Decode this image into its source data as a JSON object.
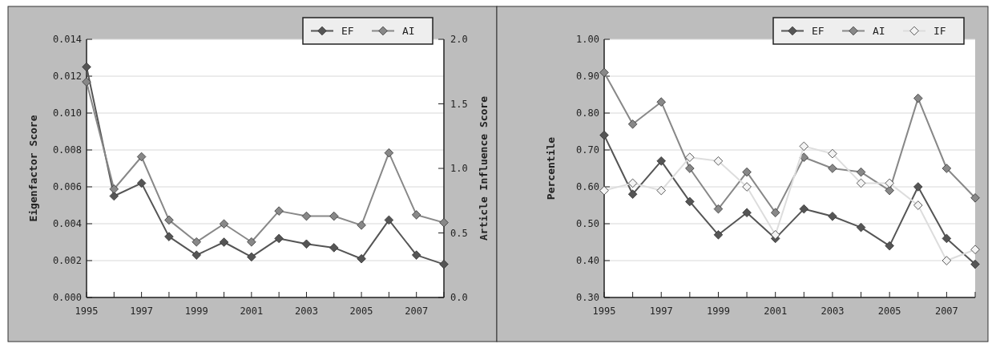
{
  "chart_data": [
    {
      "type": "line",
      "xlabel": null,
      "ylabel": "Eigenfactor Score",
      "y2label": "Article Influence Score",
      "x": [
        1995,
        1996,
        1997,
        1998,
        1999,
        2000,
        2001,
        2002,
        2003,
        2004,
        2005,
        2006,
        2007,
        2008
      ],
      "xlim": [
        1995,
        2008
      ],
      "xticks": [
        1995,
        {
          "value": 1996,
          "label": null
        },
        1997,
        {
          "value": 1998,
          "label": null
        },
        1999,
        {
          "value": 2000,
          "label": null
        },
        2001,
        {
          "value": 2002,
          "label": null
        },
        2003,
        {
          "value": 2004,
          "label": null
        },
        2005,
        {
          "value": 2006,
          "label": null
        },
        2007,
        {
          "value": 2008,
          "label": null
        }
      ],
      "ylim": [
        0,
        0.014
      ],
      "yticks": [
        {
          "value": 0,
          "label": "0.000"
        },
        {
          "value": 0.002,
          "label": "0.002"
        },
        {
          "value": 0.004,
          "label": "0.004"
        },
        {
          "value": 0.006,
          "label": "0.006"
        },
        {
          "value": 0.008,
          "label": "0.008"
        },
        {
          "value": 0.01,
          "label": "0.010"
        },
        {
          "value": 0.012,
          "label": "0.012"
        },
        {
          "value": 0.014,
          "label": "0.014"
        }
      ],
      "y2lim": [
        0,
        2
      ],
      "y2ticks": [
        {
          "value": 0,
          "label": "0.0"
        },
        {
          "value": 0.5,
          "label": "0.5"
        },
        {
          "value": 1,
          "label": "1.0"
        },
        {
          "value": 1.5,
          "label": "1.5"
        },
        {
          "value": 2,
          "label": "2.0"
        }
      ],
      "grid": "y",
      "legend": "top right",
      "marker": "diamond",
      "line_style": "solid",
      "series": [
        {
          "name": "EF",
          "color": "#555555",
          "values": [
            0.0125,
            0.0055,
            0.0062,
            0.0033,
            0.0023,
            0.003,
            0.0022,
            0.0032,
            0.0029,
            0.0027,
            0.0021,
            0.0042,
            0.0023,
            0.0018
          ]
        },
        {
          "name": "AI",
          "color": "#888888",
          "axis": "y2",
          "values": [
            1.67,
            0.84,
            1.09,
            0.6,
            0.43,
            0.57,
            0.43,
            0.67,
            0.63,
            0.63,
            0.56,
            1.12,
            0.64,
            0.58
          ]
        }
      ]
    },
    {
      "type": "line",
      "ylabel": "Percentile",
      "x": [
        1995,
        1996,
        1997,
        1998,
        1999,
        2000,
        2001,
        2002,
        2003,
        2004,
        2005,
        2006,
        2007,
        2008
      ],
      "xlim": [
        1995,
        2008
      ],
      "xticks": [
        1995,
        {
          "value": 1996,
          "label": null
        },
        1997,
        {
          "value": 1998,
          "label": null
        },
        1999,
        {
          "value": 2000,
          "label": null
        },
        2001,
        {
          "value": 2002,
          "label": null
        },
        2003,
        {
          "value": 2004,
          "label": null
        },
        2005,
        {
          "value": 2006,
          "label": null
        },
        2007,
        {
          "value": 2008,
          "label": null
        }
      ],
      "ylim": [
        0.3,
        1
      ],
      "yticks": [
        {
          "value": 0.3,
          "label": "0.30"
        },
        {
          "value": 0.4,
          "label": "0.40"
        },
        {
          "value": 0.5,
          "label": "0.50"
        },
        {
          "value": 0.6,
          "label": "0.60"
        },
        {
          "value": 0.7,
          "label": "0.70"
        },
        {
          "value": 0.8,
          "label": "0.80"
        },
        {
          "value": 0.9,
          "label": "0.90"
        },
        {
          "value": 1,
          "label": "1.00"
        }
      ],
      "grid": "y",
      "legend": "top right",
      "marker": "diamond",
      "line_style": "solid",
      "series": [
        {
          "name": "EF",
          "color": "#555555",
          "values": [
            0.74,
            0.58,
            0.67,
            0.56,
            0.47,
            0.53,
            0.46,
            0.54,
            0.52,
            0.49,
            0.44,
            0.6,
            0.46,
            0.39
          ]
        },
        {
          "name": "AI",
          "color": "#888888",
          "values": [
            0.91,
            0.77,
            0.83,
            0.65,
            0.54,
            0.64,
            0.53,
            0.68,
            0.65,
            0.64,
            0.59,
            0.84,
            0.65,
            0.57
          ]
        },
        {
          "name": "IF",
          "color": "#dddddd",
          "values": [
            0.59,
            0.61,
            0.59,
            0.68,
            0.67,
            0.6,
            0.47,
            0.71,
            0.69,
            0.61,
            0.61,
            0.55,
            0.4,
            0.43
          ]
        }
      ]
    }
  ]
}
